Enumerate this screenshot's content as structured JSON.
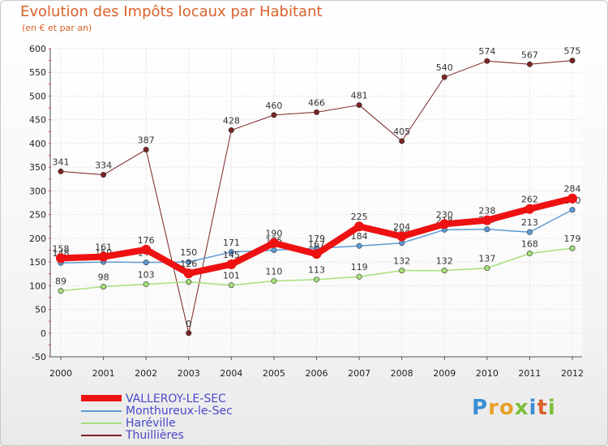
{
  "title": "Evolution des Impôts locaux par Habitant",
  "subtitle": "(en € et par an)",
  "logo_letters": [
    "P",
    "r",
    "o",
    "x",
    "i",
    "t",
    "i"
  ],
  "logo_colors": [
    "#3a8fd6",
    "#e9a12a",
    "#e9a12a",
    "#7cbf3a",
    "#3a8fd6",
    "#d9622b",
    "#7cbf3a"
  ],
  "chart_data": {
    "type": "line",
    "title": "Evolution des Impôts locaux par Habitant",
    "ylabel": "(en € et par an)",
    "xlabel": "",
    "categories": [
      "2000",
      "2001",
      "2002",
      "2003",
      "2004",
      "2005",
      "2006",
      "2007",
      "2008",
      "2009",
      "2010",
      "2011",
      "2012"
    ],
    "yticks": [
      -50,
      0,
      50,
      100,
      150,
      200,
      250,
      300,
      350,
      400,
      450,
      500,
      550,
      600
    ],
    "ylim": [
      -50,
      600
    ],
    "series": [
      {
        "name": "Thuillières",
        "color": "#7b2323",
        "width": 1,
        "values": [
          341,
          334,
          387,
          0,
          428,
          460,
          466,
          481,
          405,
          540,
          574,
          567,
          575
        ],
        "labels": [
          "341",
          "334",
          "387",
          "0",
          "428",
          "460",
          "466",
          "481",
          "405",
          "540",
          "574",
          "567",
          "575"
        ]
      },
      {
        "name": "Haréville",
        "color": "#a6e07a",
        "width": 1.5,
        "values": [
          89,
          98,
          103,
          108,
          101,
          110,
          113,
          119,
          132,
          132,
          137,
          168,
          179
        ],
        "labels": [
          "89",
          "98",
          "103",
          "",
          "101",
          "110",
          "113",
          "119",
          "132",
          "132",
          "137",
          "168",
          "179"
        ]
      },
      {
        "name": "Monthureux-le-Sec",
        "color": "#5b9bd5",
        "width": 1.5,
        "values": [
          148,
          150,
          149,
          150,
          171,
          175,
          179,
          184,
          190,
          218,
          219,
          213,
          260
        ],
        "labels": [
          "148",
          "150",
          "149",
          "150",
          "171",
          "175",
          "179",
          "184",
          "190",
          "218",
          "219",
          "213",
          "260"
        ]
      },
      {
        "name": "VALLEROY-LE-SEC",
        "color": "#ee1111",
        "width": 8,
        "values": [
          158,
          161,
          176,
          126,
          145,
          190,
          167,
          225,
          204,
          230,
          238,
          262,
          284
        ],
        "labels": [
          "158",
          "161",
          "176",
          "126",
          "145",
          "190",
          "167",
          "225",
          "204",
          "230",
          "238",
          "262",
          "284"
        ]
      }
    ],
    "legend": [
      {
        "name": "VALLEROY-LE-SEC",
        "color": "#ee1111"
      },
      {
        "name": "Monthureux-le-Sec",
        "color": "#5b9bd5"
      },
      {
        "name": "Haréville",
        "color": "#a6e07a"
      },
      {
        "name": "Thuillières",
        "color": "#7b2323"
      }
    ]
  }
}
